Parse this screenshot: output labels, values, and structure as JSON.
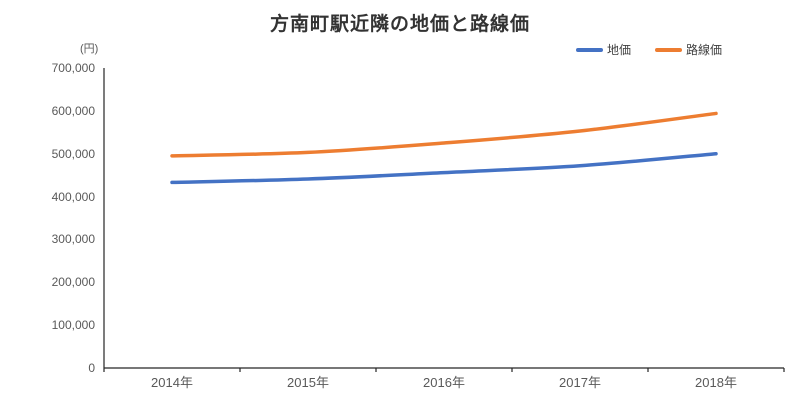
{
  "chart": {
    "title": "方南町駅近隣の地価と路線価",
    "y_axis_unit_label": "(円)",
    "axis_color": "#262626",
    "label_color": "#595959"
  },
  "chart_data": {
    "type": "line",
    "title": "方南町駅近隣の地価と路線価",
    "xlabel": "",
    "ylabel": "(円)",
    "categories": [
      "2014年",
      "2015年",
      "2016年",
      "2017年",
      "2018年"
    ],
    "series": [
      {
        "name": "地価",
        "color": "#4472C4",
        "values": [
          433000,
          441000,
          456000,
          472000,
          500000
        ]
      },
      {
        "name": "路線価",
        "color": "#ED7D31",
        "values": [
          495000,
          503000,
          525000,
          553000,
          594000
        ]
      }
    ],
    "ylim": [
      0,
      700000
    ],
    "y_tick_step": 100000,
    "y_tick_labels": [
      "0",
      "100,000",
      "200,000",
      "300,000",
      "400,000",
      "500,000",
      "600,000",
      "700,000"
    ],
    "grid": false,
    "smooth": true,
    "legend_position": "top-right"
  }
}
